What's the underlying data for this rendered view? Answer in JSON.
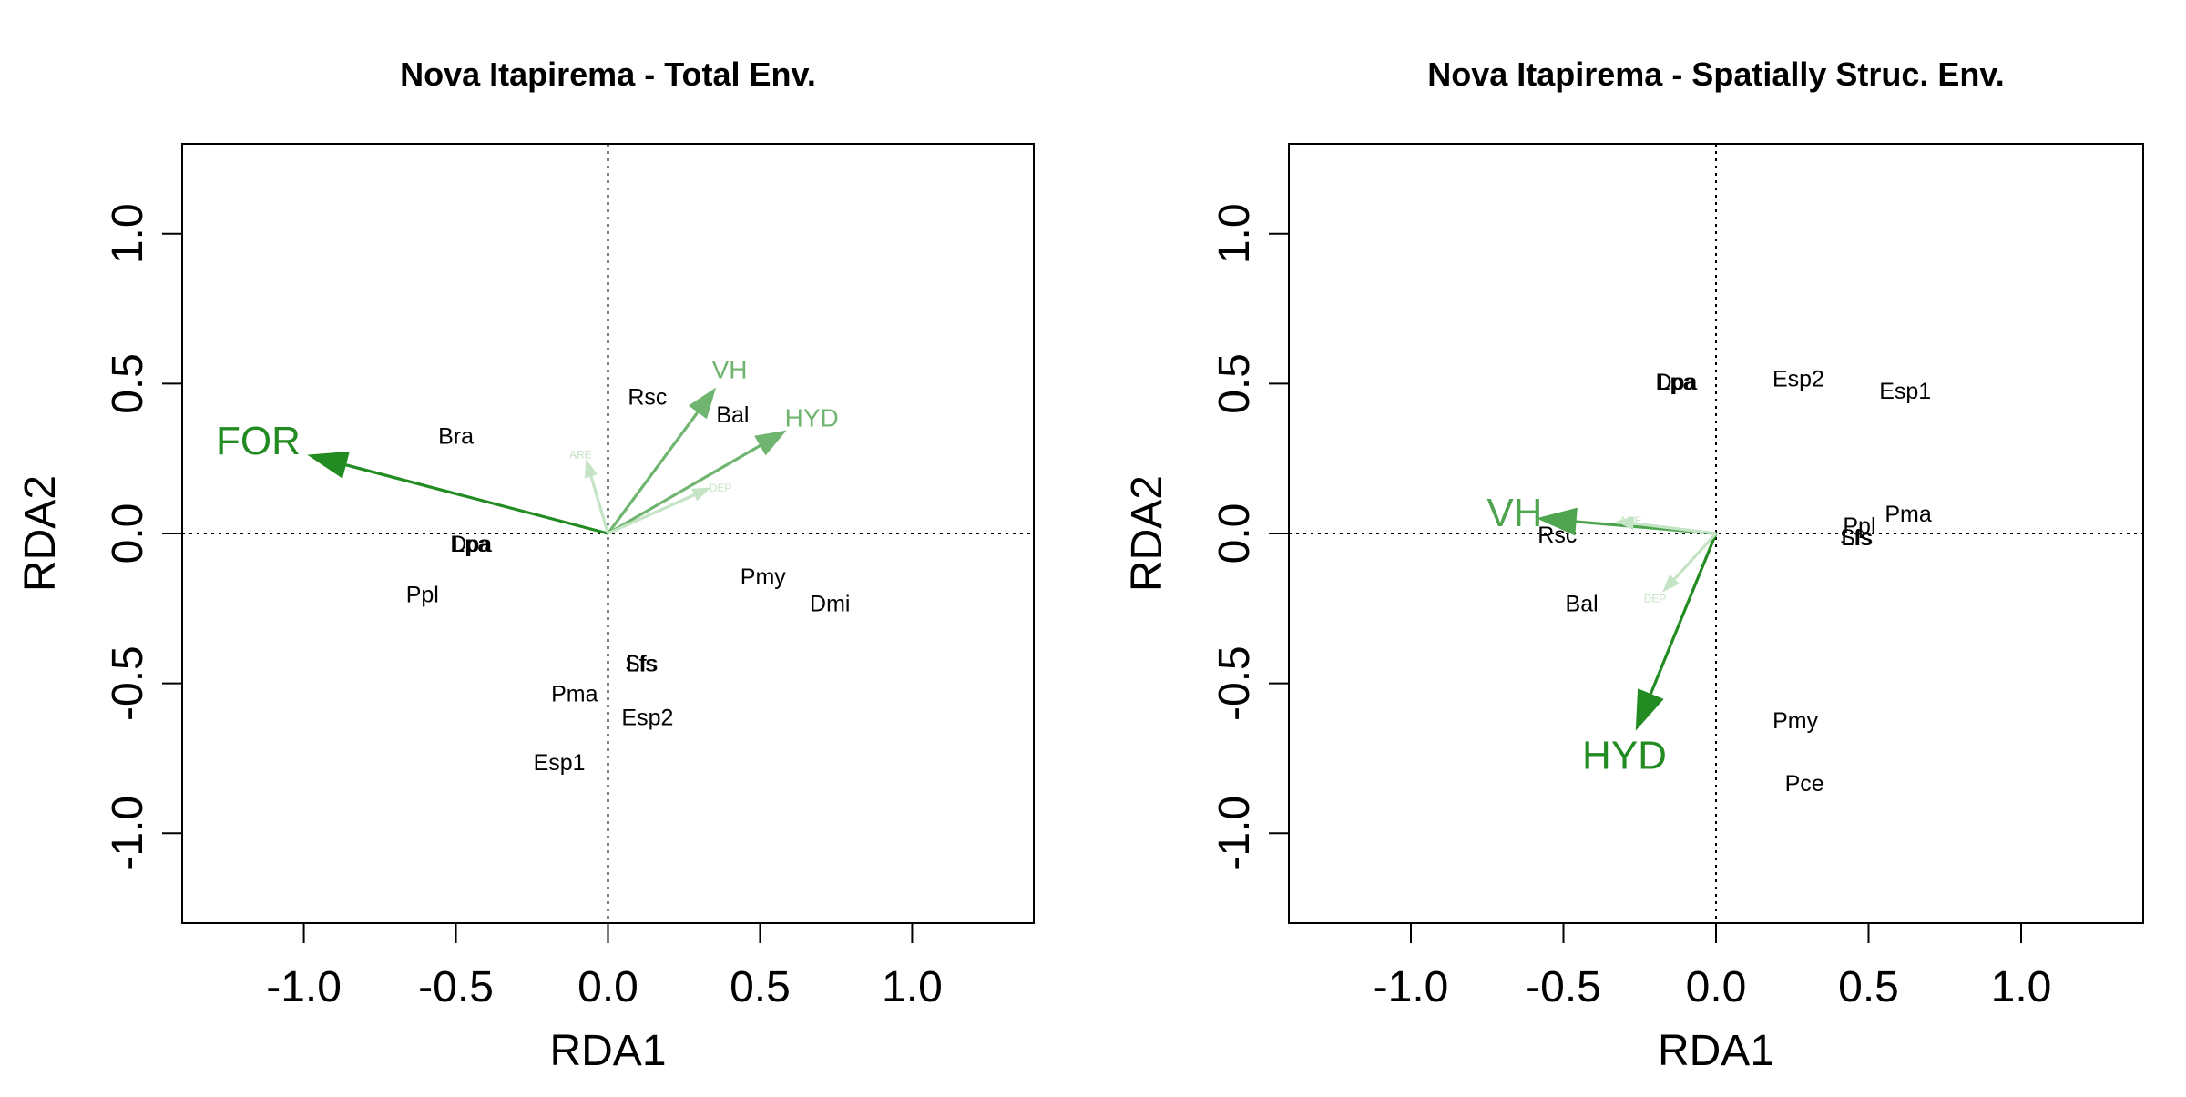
{
  "chart_data": [
    {
      "type": "scatter",
      "title": "Nova Itapirema - Total Env.",
      "xlabel": "RDA1",
      "ylabel": "RDA2",
      "xlim": [
        -1.4,
        1.4
      ],
      "ylim": [
        -1.3,
        1.3
      ],
      "x_ticks": [
        "-1.0",
        "-0.5",
        "0.0",
        "0.5",
        "1.0"
      ],
      "y_ticks": [
        "-1.0",
        "-0.5",
        "0.0",
        "0.5",
        "1.0"
      ],
      "species": [
        {
          "label": "Rsc",
          "x": 0.13,
          "y": 0.45
        },
        {
          "label": "Bal",
          "x": 0.41,
          "y": 0.39
        },
        {
          "label": "Bra",
          "x": -0.5,
          "y": 0.32
        },
        {
          "label": "Dpa",
          "x": -0.45,
          "y": -0.04
        },
        {
          "label": "Lpa",
          "x": -0.45,
          "y": -0.04
        },
        {
          "label": "Ppl",
          "x": -0.61,
          "y": -0.21
        },
        {
          "label": "Pmy",
          "x": 0.51,
          "y": -0.15
        },
        {
          "label": "Dmi",
          "x": 0.73,
          "y": -0.24
        },
        {
          "label": "Sfs",
          "x": 0.11,
          "y": -0.44
        },
        {
          "label": "Lfs",
          "x": 0.11,
          "y": -0.44
        },
        {
          "label": "Pma",
          "x": -0.11,
          "y": -0.54
        },
        {
          "label": "Esp2",
          "x": 0.13,
          "y": -0.62
        },
        {
          "label": "Esp1",
          "x": -0.16,
          "y": -0.77
        }
      ],
      "vectors": [
        {
          "label": "FOR",
          "x": -0.98,
          "y": 0.26,
          "lx": -1.15,
          "ly": 0.3,
          "color": "#228b22",
          "size": "large"
        },
        {
          "label": "VH",
          "x": 0.35,
          "y": 0.48,
          "lx": 0.4,
          "ly": 0.54,
          "color": "#6fb46f",
          "size": "medium"
        },
        {
          "label": "HYD",
          "x": 0.58,
          "y": 0.34,
          "lx": 0.67,
          "ly": 0.38,
          "color": "#6fb46f",
          "size": "medium"
        },
        {
          "label": "ARE",
          "x": -0.07,
          "y": 0.24,
          "lx": -0.09,
          "ly": 0.26,
          "color": "#c5e3c5",
          "size": "tiny"
        },
        {
          "label": "DEP",
          "x": 0.33,
          "y": 0.15,
          "lx": 0.37,
          "ly": 0.15,
          "color": "#c5e3c5",
          "size": "tiny"
        }
      ]
    },
    {
      "type": "scatter",
      "title": "Nova Itapirema - Spatially Struc. Env.",
      "xlabel": "RDA1",
      "ylabel": "RDA2",
      "xlim": [
        -1.4,
        1.4
      ],
      "ylim": [
        -1.3,
        1.3
      ],
      "x_ticks": [
        "-1.0",
        "-0.5",
        "0.0",
        "0.5",
        "1.0"
      ],
      "y_ticks": [
        "-1.0",
        "-0.5",
        "0.0",
        "0.5",
        "1.0"
      ],
      "species": [
        {
          "label": "Dpa",
          "x": -0.13,
          "y": 0.5
        },
        {
          "label": "Lpa",
          "x": -0.13,
          "y": 0.5
        },
        {
          "label": "Esp2",
          "x": 0.27,
          "y": 0.51
        },
        {
          "label": "Esp1",
          "x": 0.62,
          "y": 0.47
        },
        {
          "label": "Pma",
          "x": 0.63,
          "y": 0.06
        },
        {
          "label": "Ppl",
          "x": 0.47,
          "y": 0.02
        },
        {
          "label": "Sfs",
          "x": 0.46,
          "y": -0.02
        },
        {
          "label": "Lfs",
          "x": 0.46,
          "y": -0.02
        },
        {
          "label": "Rsc",
          "x": -0.52,
          "y": -0.01
        },
        {
          "label": "Bal",
          "x": -0.44,
          "y": -0.24
        },
        {
          "label": "Pmy",
          "x": 0.26,
          "y": -0.63
        },
        {
          "label": "Pce",
          "x": 0.29,
          "y": -0.84
        }
      ],
      "vectors": [
        {
          "label": "VH",
          "x": -0.58,
          "y": 0.05,
          "lx": -0.66,
          "ly": 0.06,
          "color": "#4fa44f",
          "size": "large"
        },
        {
          "label": "HYD",
          "x": -0.26,
          "y": -0.65,
          "lx": -0.3,
          "ly": -0.75,
          "color": "#228b22",
          "size": "large"
        },
        {
          "label": "ARE",
          "x": -0.32,
          "y": 0.04,
          "lx": -0.28,
          "ly": 0.04,
          "color": "#c5e3c5",
          "size": "tiny"
        },
        {
          "label": "DEP",
          "x": -0.17,
          "y": -0.19,
          "lx": -0.2,
          "ly": -0.22,
          "color": "#c5e3c5",
          "size": "tiny"
        }
      ]
    }
  ]
}
